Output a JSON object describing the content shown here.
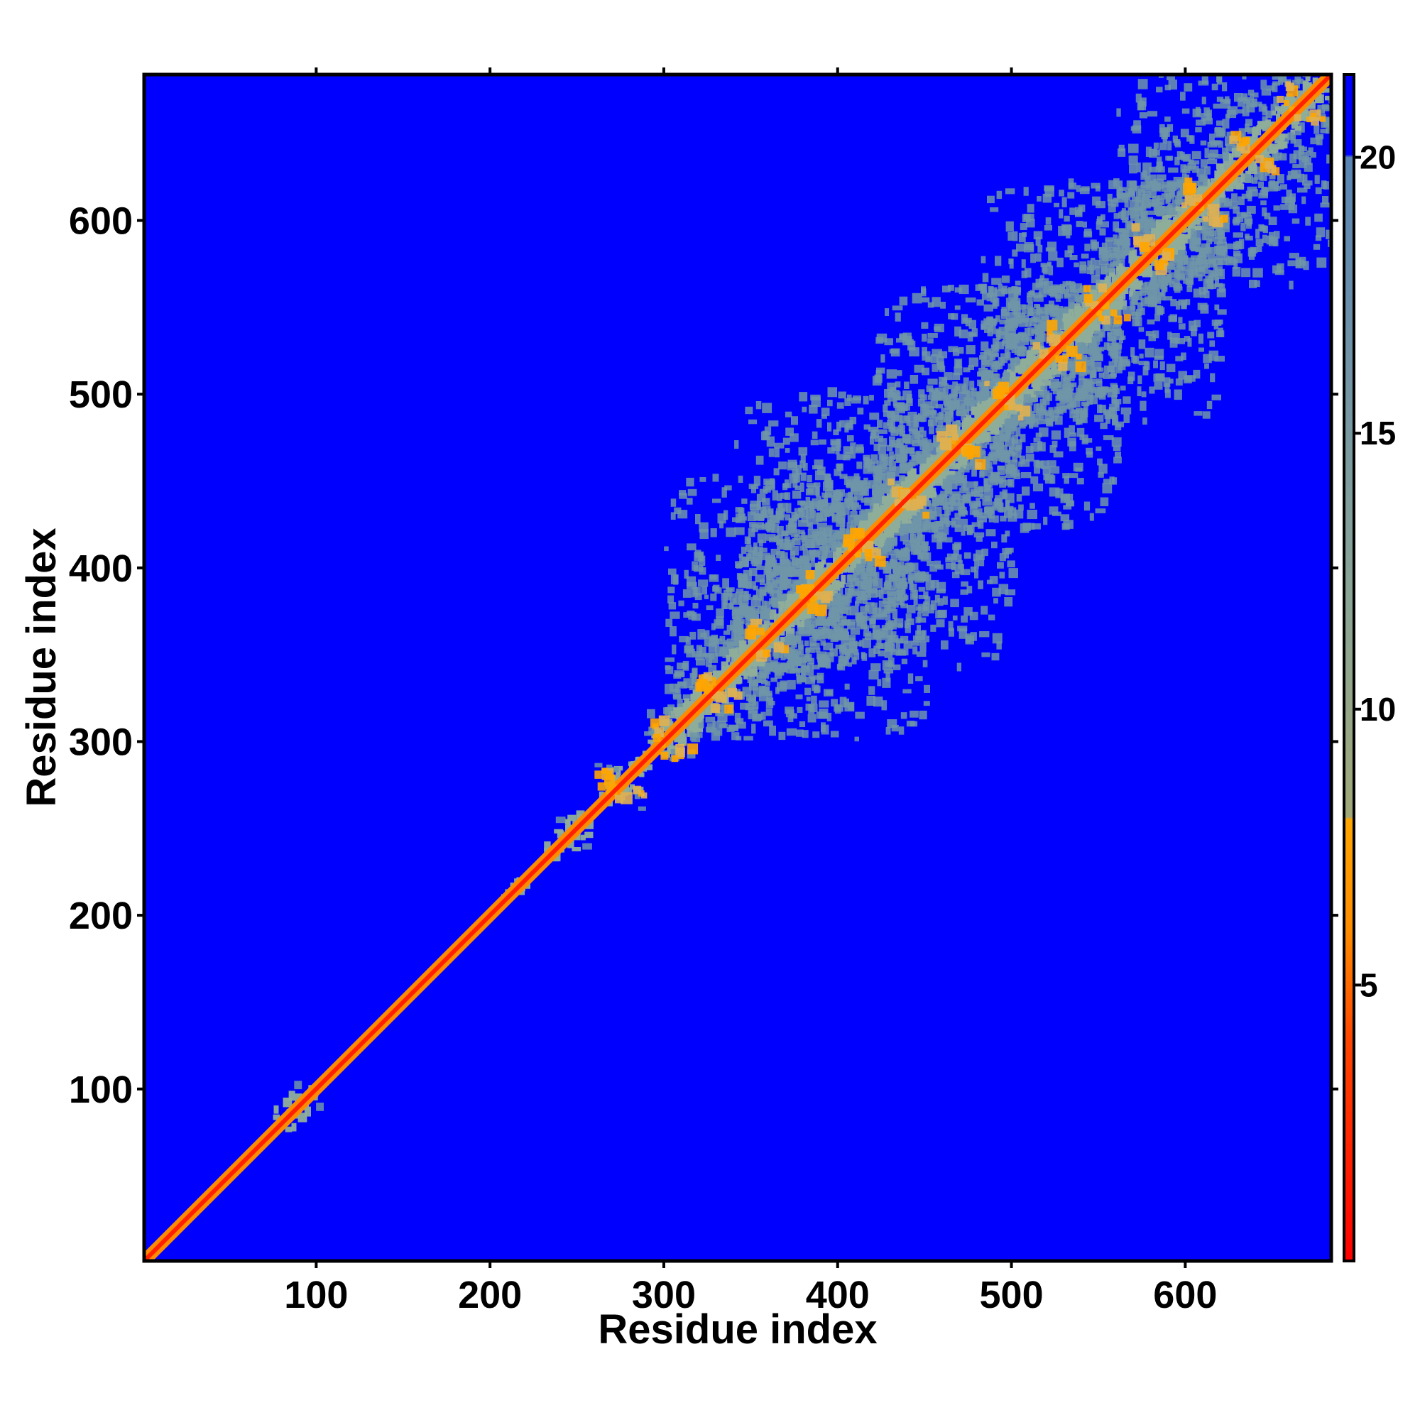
{
  "chart_data": {
    "type": "heatmap",
    "title": "",
    "xlabel": "Residue index",
    "ylabel": "Residue index",
    "xlim": [
      1,
      684
    ],
    "ylim": [
      1,
      684
    ],
    "x_ticks": [
      100,
      200,
      300,
      400,
      500,
      600
    ],
    "y_ticks": [
      100,
      200,
      300,
      400,
      500,
      600
    ],
    "x_tick_labels": [
      "100",
      "200",
      "300",
      "400",
      "500",
      "600"
    ],
    "y_tick_labels": [
      "100",
      "200",
      "300",
      "400",
      "500",
      "600"
    ],
    "grid": false,
    "value_description": "symmetric residue-residue distance map; diagonal lowest, blocks of contacts concentrated along diagonal beyond residue 260",
    "contact_blocks": [
      {
        "start": 75,
        "end": 100
      },
      {
        "start": 205,
        "end": 220
      },
      {
        "start": 230,
        "end": 255
      },
      {
        "start": 260,
        "end": 290
      },
      {
        "start": 285,
        "end": 320
      },
      {
        "start": 300,
        "end": 450
      },
      {
        "start": 340,
        "end": 500
      },
      {
        "start": 420,
        "end": 560
      },
      {
        "start": 480,
        "end": 620
      },
      {
        "start": 560,
        "end": 684
      }
    ],
    "colorbar": {
      "ticks": [
        5,
        10,
        15,
        20
      ],
      "tick_labels": [
        "5",
        "10",
        "15",
        "20"
      ],
      "range": [
        0,
        21.5
      ],
      "colors": [
        {
          "value": 0,
          "color": "#ff0000"
        },
        {
          "value": 4,
          "color": "#ff4500"
        },
        {
          "value": 6,
          "color": "#ff8c00"
        },
        {
          "value": 8,
          "color": "#ffa500"
        },
        {
          "value": 8.05,
          "color": "#a0a878"
        },
        {
          "value": 12,
          "color": "#8aa596"
        },
        {
          "value": 20,
          "color": "#5b84b4"
        },
        {
          "value": 20.05,
          "color": "#0000ff"
        },
        {
          "value": 21.5,
          "color": "#0000ff"
        }
      ]
    },
    "colors": {
      "background": "#0000ff",
      "diagonal": "#ff2200",
      "near_diagonal": "#ff8c00",
      "contact": "#6f95a8",
      "frame": "#000000"
    }
  }
}
